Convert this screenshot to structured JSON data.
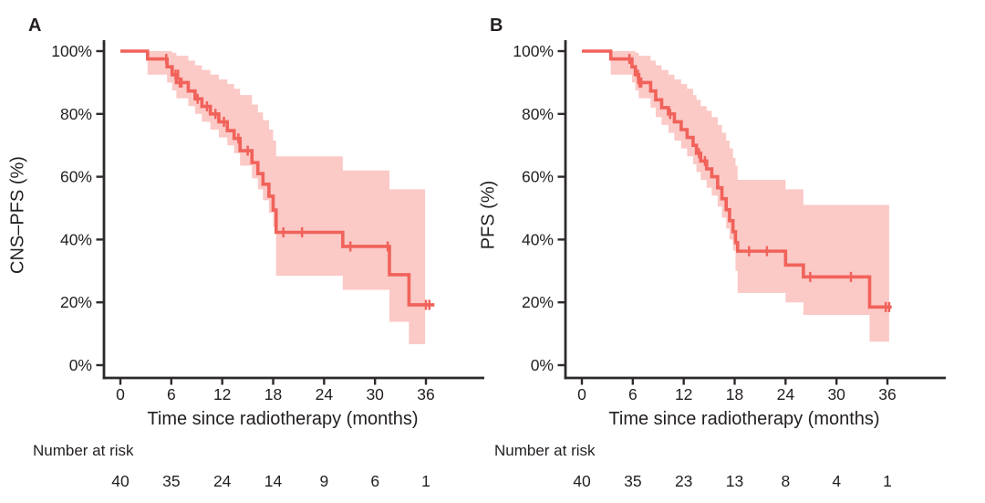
{
  "figure": {
    "background": "#ffffff"
  },
  "colors": {
    "curve": "#f0625a",
    "band": "#fbc9c6",
    "axis": "#2e2a2b",
    "text": "#231f20"
  },
  "chart_data": [
    {
      "type": "line",
      "subtype": "kaplan-meier-step",
      "panel": "A",
      "xlabel": "Time since radiotherapy (months)",
      "ylabel": "CNS–PFS (%)",
      "xlim": [
        0,
        40
      ],
      "ylim": [
        0,
        100
      ],
      "x_ticks": [
        0,
        6,
        12,
        18,
        24,
        30,
        36
      ],
      "y_ticks": [
        {
          "value": 0,
          "label": "0%"
        },
        {
          "value": 20,
          "label": "20%"
        },
        {
          "value": 40,
          "label": "40%"
        },
        {
          "value": 60,
          "label": "60%"
        },
        {
          "value": 80,
          "label": "80%"
        },
        {
          "value": 100,
          "label": "100%"
        }
      ],
      "steps": [
        [
          0,
          100
        ],
        [
          3.2,
          97.5
        ],
        [
          5.5,
          95
        ],
        [
          6.1,
          92.5
        ],
        [
          6.6,
          90
        ],
        [
          8.0,
          87.3
        ],
        [
          8.8,
          84.8
        ],
        [
          9.6,
          82.4
        ],
        [
          10.6,
          80
        ],
        [
          11.6,
          77.5
        ],
        [
          12.6,
          74.7
        ],
        [
          13.4,
          72.2
        ],
        [
          14.1,
          68.3
        ],
        [
          15.5,
          64.5
        ],
        [
          16.2,
          61
        ],
        [
          16.8,
          57.6
        ],
        [
          17.5,
          53.8
        ],
        [
          18.0,
          49.4
        ],
        [
          18.35,
          42.3
        ],
        [
          26.2,
          37.8
        ],
        [
          31.7,
          28.8
        ],
        [
          34.0,
          19.2
        ]
      ],
      "curve_end": 37.0,
      "censors": [
        [
          5.4,
          97.5
        ],
        [
          6.5,
          92.5
        ],
        [
          6.8,
          92.5
        ],
        [
          7.0,
          90
        ],
        [
          7.2,
          90
        ],
        [
          9.1,
          84.8
        ],
        [
          10.2,
          82.4
        ],
        [
          11.2,
          80
        ],
        [
          12.2,
          77.5
        ],
        [
          13.9,
          72.2
        ],
        [
          15.0,
          68.3
        ],
        [
          19.2,
          42.3
        ],
        [
          21.4,
          42.3
        ],
        [
          27.1,
          37.8
        ],
        [
          31.5,
          37.8
        ],
        [
          36.0,
          19.2
        ],
        [
          36.4,
          19.2
        ]
      ],
      "ci": [
        [
          3.2,
          100,
          92.5
        ],
        [
          5.5,
          100,
          90
        ],
        [
          6.1,
          99.5,
          87.5
        ],
        [
          6.6,
          98.5,
          85
        ],
        [
          8.0,
          97,
          82.5
        ],
        [
          8.8,
          95.5,
          80
        ],
        [
          9.6,
          94,
          77.5
        ],
        [
          10.6,
          92.5,
          75
        ],
        [
          11.6,
          91,
          72.5
        ],
        [
          12.6,
          89.5,
          70
        ],
        [
          13.4,
          88,
          67.5
        ],
        [
          14.1,
          86,
          63.5
        ],
        [
          15.5,
          83,
          59.5
        ],
        [
          16.2,
          80.5,
          56
        ],
        [
          16.8,
          78,
          52.5
        ],
        [
          17.5,
          75,
          48.5
        ],
        [
          18.0,
          71.5,
          44
        ],
        [
          18.35,
          66.5,
          28.5
        ],
        [
          26.2,
          62,
          24
        ],
        [
          31.7,
          56,
          13.8
        ],
        [
          34.0,
          56,
          6.7
        ]
      ],
      "ci_end": 35.9,
      "number_at_risk": {
        "label": "Number at risk",
        "times": [
          0,
          6,
          12,
          18,
          24,
          30,
          36
        ],
        "counts": [
          40,
          35,
          24,
          14,
          9,
          6,
          1
        ]
      }
    },
    {
      "type": "line",
      "subtype": "kaplan-meier-step",
      "panel": "B",
      "xlabel": "Time since radiotherapy (months)",
      "ylabel": "PFS (%)",
      "xlim": [
        0,
        40
      ],
      "ylim": [
        0,
        100
      ],
      "x_ticks": [
        0,
        6,
        12,
        18,
        24,
        30,
        36
      ],
      "y_ticks": [
        {
          "value": 0,
          "label": "0%"
        },
        {
          "value": 20,
          "label": "20%"
        },
        {
          "value": 40,
          "label": "40%"
        },
        {
          "value": 60,
          "label": "60%"
        },
        {
          "value": 80,
          "label": "80%"
        },
        {
          "value": 100,
          "label": "100%"
        }
      ],
      "steps": [
        [
          0,
          100
        ],
        [
          3.4,
          97.5
        ],
        [
          5.9,
          95
        ],
        [
          6.3,
          92.5
        ],
        [
          6.7,
          90
        ],
        [
          8.1,
          87.3
        ],
        [
          8.7,
          84.5
        ],
        [
          9.4,
          82
        ],
        [
          10.2,
          80
        ],
        [
          10.9,
          77.5
        ],
        [
          11.7,
          75
        ],
        [
          12.4,
          72.5
        ],
        [
          13.1,
          70
        ],
        [
          13.5,
          67.5
        ],
        [
          14.0,
          65
        ],
        [
          14.7,
          62.5
        ],
        [
          15.3,
          60
        ],
        [
          16.0,
          56.5
        ],
        [
          16.5,
          53
        ],
        [
          17.0,
          49.5
        ],
        [
          17.4,
          46
        ],
        [
          17.8,
          42.5
        ],
        [
          18.1,
          39
        ],
        [
          18.35,
          36.3
        ],
        [
          24.0,
          31.9
        ],
        [
          26.1,
          28.1
        ],
        [
          33.9,
          18.5
        ]
      ],
      "curve_end": 36.5,
      "censors": [
        [
          5.6,
          97.5
        ],
        [
          6.6,
          92.5
        ],
        [
          6.8,
          90
        ],
        [
          7.0,
          90
        ],
        [
          10.4,
          80
        ],
        [
          13.8,
          67.5
        ],
        [
          14.5,
          65
        ],
        [
          19.7,
          36.3
        ],
        [
          21.8,
          36.3
        ],
        [
          26.9,
          28.1
        ],
        [
          31.7,
          28.1
        ],
        [
          35.8,
          18.5
        ],
        [
          36.2,
          18.5
        ]
      ],
      "ci": [
        [
          3.4,
          100,
          92.5
        ],
        [
          5.9,
          100,
          90
        ],
        [
          6.3,
          99.5,
          87.5
        ],
        [
          6.7,
          98.5,
          85
        ],
        [
          8.1,
          97,
          82
        ],
        [
          8.7,
          95.5,
          79
        ],
        [
          9.4,
          94,
          76.5
        ],
        [
          10.2,
          92.5,
          74
        ],
        [
          10.9,
          91,
          71.5
        ],
        [
          11.7,
          89.5,
          69
        ],
        [
          12.4,
          88,
          66.5
        ],
        [
          13.1,
          86,
          64
        ],
        [
          13.5,
          84.5,
          61.5
        ],
        [
          14.0,
          82.5,
          59
        ],
        [
          14.7,
          81,
          56.5
        ],
        [
          15.3,
          79,
          54
        ],
        [
          16.0,
          76.5,
          50.5
        ],
        [
          16.5,
          74,
          47
        ],
        [
          17.0,
          71.5,
          43.5
        ],
        [
          17.4,
          69,
          40
        ],
        [
          17.8,
          66,
          36.5
        ],
        [
          18.1,
          63.5,
          30
        ],
        [
          18.35,
          59,
          23
        ],
        [
          24.0,
          56,
          20
        ],
        [
          26.1,
          51,
          16
        ],
        [
          33.9,
          51,
          7.5
        ]
      ],
      "ci_end": 36.2,
      "number_at_risk": {
        "label": "Number at risk",
        "times": [
          0,
          6,
          12,
          18,
          24,
          30,
          36
        ],
        "counts": [
          40,
          35,
          23,
          13,
          8,
          4,
          1
        ]
      }
    }
  ]
}
